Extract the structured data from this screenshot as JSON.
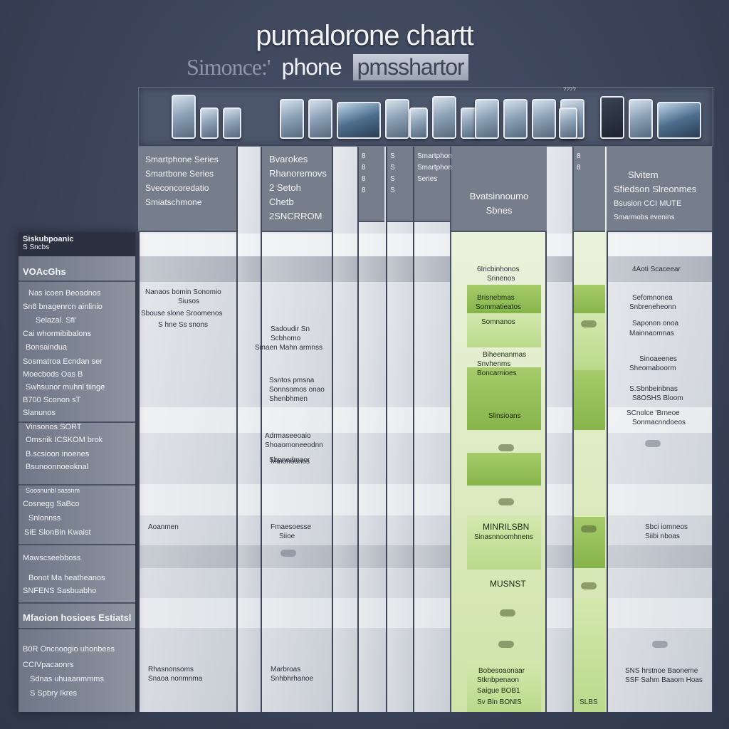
{
  "title": "pumalorone chartt",
  "subtitle": {
    "part1": "Simonce:'",
    "part2": "phone",
    "part3": "pmsshartor"
  },
  "header": {
    "corner_tag": "????"
  },
  "columns": [
    {
      "lines": [
        "Smartphone Series",
        "Smartbone Series",
        "Sveconcoredatio",
        "Smiatschmone"
      ]
    },
    {
      "lines": [
        "Bvarokes",
        "Rhanoremovs",
        "2 Setoh Chetb",
        "2SNCRROM"
      ]
    },
    {
      "lines": [
        "8",
        "8",
        "8",
        "8"
      ]
    },
    {
      "lines": [
        "S",
        "S",
        "S",
        "S"
      ]
    },
    {
      "lines": [
        "Smartphone",
        "Smartphone Series"
      ]
    },
    {
      "lines": [
        "Bvatsinnoumo",
        "Sbnes"
      ]
    },
    {
      "lines": [
        "8",
        "8"
      ]
    },
    {
      "lines": [
        "Slvitem",
        "Sfiedson Slreonmes",
        "Bsusion CCI MUTE",
        "Smarmobs evenins"
      ]
    }
  ],
  "left_panel": {
    "header": "Siskubpoanic",
    "items": [
      "S Sncbs",
      "VOAcGhs",
      "Nas icoen Beoadnos",
      "Sn8 bnagenrcn ainlinio",
      "Selazal. Sfi'",
      "Cai whormibibalons",
      "Bonsaindua",
      "Sosmatroa Ecndan ser",
      "Moecbods Oas B",
      "Swhsunor muhnl tiinge",
      "B700 Sconon sT",
      "Slanunos",
      "Vinsonos SORT",
      "Omsnik ICSKOM brok",
      "B.scsioon inoenes",
      "Bsunoonnoeoknal",
      "Soosnunbl sassnm",
      "Cosnegg SaBco",
      "Snlonnss",
      "SiE SlonBin Kwaist",
      "Mawscseebboss",
      "Bonot Ma heatheanos",
      "SNFENS Sasbuabho",
      "Mfaoion hosioes Estiatsl",
      "B0R Oncnoogio uhonbees",
      "CCIVpacaonrs",
      "Sdnas uhuaanmmms",
      "S Spbry Ikres"
    ]
  },
  "cells": {
    "c1": [
      "Nanaos bomin Sonomio",
      "Siusos",
      "Sbouse slone Sroomenos",
      "S hne Ss snons"
    ],
    "c2a": [
      "Smaen Mahn armnss"
    ],
    "c2b": [
      "Ssntos pmsna",
      "Sonnsomos onao",
      "Shenbhmen"
    ],
    "c2c": [
      "Rhasnonsoms",
      "Snaoa nonmnma",
      "Sadoudir Sn",
      "Scbhomo"
    ],
    "c2d": [
      "Mmonoanos"
    ],
    "c3": [
      "Adrmaseeoaio",
      "Shoaomoneeodnn",
      "Sbpnedmaor"
    ],
    "c4": [
      "Fmaesoesse",
      "Siioe"
    ],
    "c5": [
      "Aoanmen"
    ],
    "c6": [
      "Marbroas",
      "Snhbhrhanoe"
    ],
    "g1": [
      "6Iricbinhonos",
      "Srinenos"
    ],
    "g2": [
      "Brisnebmas",
      "Sommatieatos",
      "Somnanos"
    ],
    "g3": [
      "Biheenanmas",
      "Snvhenms",
      "Boncarnioes"
    ],
    "g4": [
      "Slinsioans"
    ],
    "g5": [
      "MINRILSBN",
      "Sinasnnoomhnens"
    ],
    "g6": [
      "MUSNST"
    ],
    "g7": [
      "Bobesoaonaar",
      "Stknbpenaon",
      "Saigue BOB1",
      "Sv Bln BONIS"
    ],
    "r1": [
      "4Aoti Scaceear"
    ],
    "r2": [
      "Sefomnonea",
      "Snbreneheonn",
      "Saponon onoa",
      "Mainnaomnas"
    ],
    "r3": [
      "Sinoaeenes",
      "Sheomaboorm"
    ],
    "r4": [
      "S.Sbnbeinbnas",
      "S8OSHS Bloom"
    ],
    "r5": [
      "SCnolce 'Brneoe",
      "Sonmacnndoeos"
    ],
    "r6": [
      "Sbci iomneos",
      "Siibi nboas"
    ],
    "r7": [
      "SNS hrstnoe Baoneme",
      "SSF Sahm Baaom Hoas"
    ],
    "r8": [
      "SLBS"
    ]
  }
}
